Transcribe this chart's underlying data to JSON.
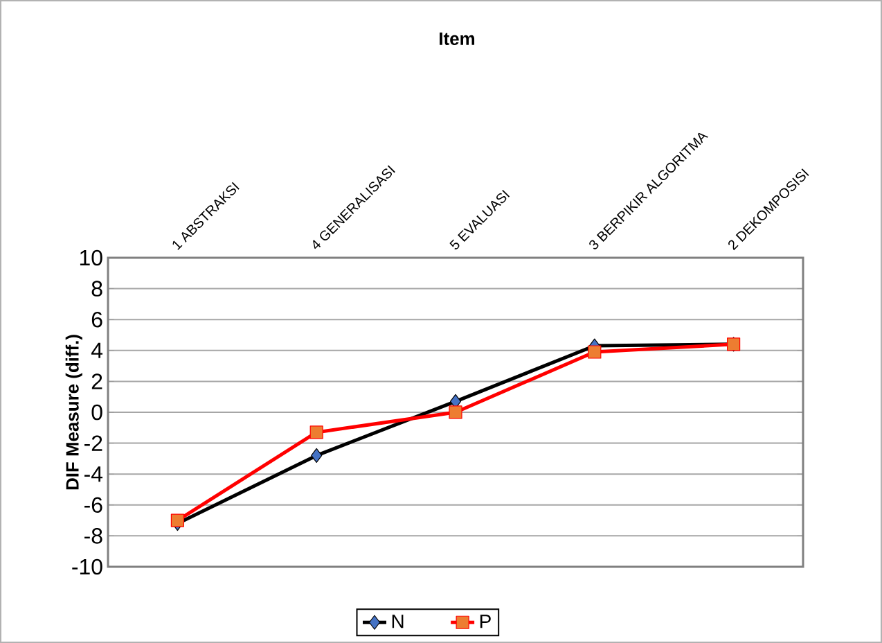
{
  "chart_data": {
    "type": "line",
    "title": "Item",
    "ylabel": "DIF Measure (diff.)",
    "categories": [
      "1 ABSTRAKSI",
      "4 GENERALISASI",
      "5 EVALUASI",
      "3 BERPIKIR ALGORITMA",
      "2 DEKOMPOSISI"
    ],
    "series": [
      {
        "name": "N",
        "color": "#000000",
        "marker": "diamond",
        "values": [
          -7.2,
          -2.8,
          0.7,
          4.3,
          4.4
        ]
      },
      {
        "name": "P",
        "color": "#ff0000",
        "marker": "square",
        "values": [
          -7.0,
          -1.3,
          0.0,
          3.9,
          4.4
        ]
      }
    ],
    "ylim": [
      -10,
      10
    ],
    "yticks": [
      -10,
      -8,
      -6,
      -4,
      -2,
      0,
      2,
      4,
      6,
      8,
      10
    ],
    "grid": "y",
    "legend": "bottom",
    "line_style": "solid"
  }
}
